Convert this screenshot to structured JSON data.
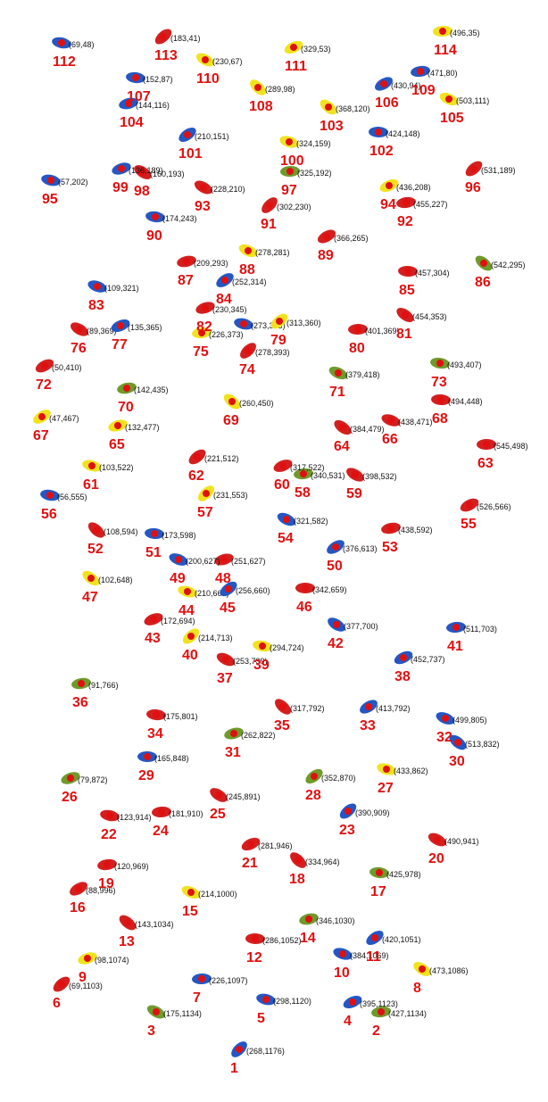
{
  "items": [
    {
      "id": "1",
      "coord": "(268,1176)",
      "color": "blue"
    },
    {
      "id": "2",
      "coord": "(427,1134)",
      "color": "green"
    },
    {
      "id": "3",
      "coord": "(175,1134)",
      "color": "green"
    },
    {
      "id": "4",
      "coord": "(395,1123)",
      "color": "blue"
    },
    {
      "id": "5",
      "coord": "(298,1120)",
      "color": "blue"
    },
    {
      "id": "6",
      "coord": "(69,1103)",
      "color": "red"
    },
    {
      "id": "7",
      "coord": "(226,1097)",
      "color": "blue"
    },
    {
      "id": "8",
      "coord": "(473,1086)",
      "color": "yellow"
    },
    {
      "id": "9",
      "coord": "(98,1074)",
      "color": "yellow"
    },
    {
      "id": "10",
      "coord": "(384,1069)",
      "color": "blue"
    },
    {
      "id": "11",
      "coord": "(420,1051)",
      "color": "blue"
    },
    {
      "id": "12",
      "coord": "(286,1052)",
      "color": "red"
    },
    {
      "id": "13",
      "coord": "(143,1034)",
      "color": "red"
    },
    {
      "id": "14",
      "coord": "(346,1030)",
      "color": "green"
    },
    {
      "id": "15",
      "coord": "(214,1000)",
      "color": "yellow"
    },
    {
      "id": "16",
      "coord": "(88,996)",
      "color": "red"
    },
    {
      "id": "17",
      "coord": "(425,978)",
      "color": "green"
    },
    {
      "id": "18",
      "coord": "(334,964)",
      "color": "red"
    },
    {
      "id": "19",
      "coord": "(120,969)",
      "color": "red"
    },
    {
      "id": "20",
      "coord": "(490,941)",
      "color": "red"
    },
    {
      "id": "21",
      "coord": "(281,946)",
      "color": "red"
    },
    {
      "id": "22",
      "coord": "(123,914)",
      "color": "red"
    },
    {
      "id": "23",
      "coord": "(390,909)",
      "color": "blue"
    },
    {
      "id": "24",
      "coord": "(181,910)",
      "color": "red"
    },
    {
      "id": "25",
      "coord": "(245,891)",
      "color": "red"
    },
    {
      "id": "26",
      "coord": "(79,872)",
      "color": "green"
    },
    {
      "id": "27",
      "coord": "(433,862)",
      "color": "yellow"
    },
    {
      "id": "28",
      "coord": "(352,870)",
      "color": "green"
    },
    {
      "id": "29",
      "coord": "(165,848)",
      "color": "blue"
    },
    {
      "id": "30",
      "coord": "(513,832)",
      "color": "blue"
    },
    {
      "id": "31",
      "coord": "(262,822)",
      "color": "green"
    },
    {
      "id": "32",
      "coord": "(499,805)",
      "color": "blue"
    },
    {
      "id": "33",
      "coord": "(413,792)",
      "color": "blue"
    },
    {
      "id": "34",
      "coord": "(175,801)",
      "color": "red"
    },
    {
      "id": "35",
      "coord": "(317,792)",
      "color": "red"
    },
    {
      "id": "36",
      "coord": "(91,766)",
      "color": "green"
    },
    {
      "id": "37",
      "coord": "(253,739)",
      "color": "red"
    },
    {
      "id": "38",
      "coord": "(452,737)",
      "color": "blue"
    },
    {
      "id": "39",
      "coord": "(294,724)",
      "color": "yellow"
    },
    {
      "id": "40",
      "coord": "(214,713)",
      "color": "yellow"
    },
    {
      "id": "41",
      "coord": "(511,703)",
      "color": "blue"
    },
    {
      "id": "42",
      "coord": "(377,700)",
      "color": "blue"
    },
    {
      "id": "43",
      "coord": "(172,694)",
      "color": "red"
    },
    {
      "id": "44",
      "coord": "(210,663)",
      "color": "yellow"
    },
    {
      "id": "45",
      "coord": "(256,660)",
      "color": "blue"
    },
    {
      "id": "46",
      "coord": "(342,659)",
      "color": "red"
    },
    {
      "id": "47",
      "coord": "(102,648)",
      "color": "yellow"
    },
    {
      "id": "48",
      "coord": "(251,627)",
      "color": "red"
    },
    {
      "id": "49",
      "coord": "(200,627)",
      "color": "blue"
    },
    {
      "id": "50",
      "coord": "(376,613)",
      "color": "blue"
    },
    {
      "id": "51",
      "coord": "(173,598)",
      "color": "blue"
    },
    {
      "id": "52",
      "coord": "(108,594)",
      "color": "red"
    },
    {
      "id": "53",
      "coord": "(438,592)",
      "color": "red"
    },
    {
      "id": "54",
      "coord": "(321,582)",
      "color": "blue"
    },
    {
      "id": "55",
      "coord": "(526,566)",
      "color": "red"
    },
    {
      "id": "56",
      "coord": "(56,555)",
      "color": "blue"
    },
    {
      "id": "57",
      "coord": "(231,553)",
      "color": "yellow"
    },
    {
      "id": "58",
      "coord": "(340,531)",
      "color": "green"
    },
    {
      "id": "59",
      "coord": "(398,532)",
      "color": "red"
    },
    {
      "id": "60",
      "coord": "(317,522)",
      "color": "red"
    },
    {
      "id": "61",
      "coord": "(103,522)",
      "color": "yellow"
    },
    {
      "id": "62",
      "coord": "(221,512)",
      "color": "red"
    },
    {
      "id": "63",
      "coord": "(545,498)",
      "color": "red"
    },
    {
      "id": "64",
      "coord": "(384,479)",
      "color": "red"
    },
    {
      "id": "65",
      "coord": "(132,477)",
      "color": "yellow"
    },
    {
      "id": "66",
      "coord": "(438,471)",
      "color": "red"
    },
    {
      "id": "67",
      "coord": "(47,467)",
      "color": "yellow"
    },
    {
      "id": "68",
      "coord": "(494,448)",
      "color": "red"
    },
    {
      "id": "69",
      "coord": "(260,450)",
      "color": "yellow"
    },
    {
      "id": "70",
      "coord": "(142,435)",
      "color": "green"
    },
    {
      "id": "71",
      "coord": "(379,418)",
      "color": "green"
    },
    {
      "id": "72",
      "coord": "(50,410)",
      "color": "red"
    },
    {
      "id": "73",
      "coord": "(493,407)",
      "color": "green"
    },
    {
      "id": "74",
      "coord": "(278,393)",
      "color": "red"
    },
    {
      "id": "75",
      "coord": "(226,373)",
      "color": "yellow"
    },
    {
      "id": "76",
      "coord": "(89,369)",
      "color": "red"
    },
    {
      "id": "77",
      "coord": "(135,365)",
      "color": "blue"
    },
    {
      "coord": "(273,363)",
      "color": "blue"
    },
    {
      "id": "79",
      "coord": "(313,360)",
      "color": "yellow"
    },
    {
      "id": "80",
      "coord": "(401,369)",
      "color": "red"
    },
    {
      "id": "81",
      "coord": "(454,353)",
      "color": "red"
    },
    {
      "id": "82",
      "coord": "(230,345)",
      "color": "red"
    },
    {
      "id": "83",
      "coord": "(109,321)",
      "color": "blue"
    },
    {
      "id": "84",
      "coord": "(252,314)",
      "color": "blue"
    },
    {
      "id": "85",
      "coord": "(457,304)",
      "color": "red"
    },
    {
      "id": "86",
      "coord": "(542,295)",
      "color": "green"
    },
    {
      "id": "87",
      "coord": "(209,293)",
      "color": "red"
    },
    {
      "id": "88",
      "coord": "(278,281)",
      "color": "yellow"
    },
    {
      "id": "89",
      "coord": "(366,265)",
      "color": "red"
    },
    {
      "id": "90",
      "coord": "(174,243)",
      "color": "blue"
    },
    {
      "id": "91",
      "coord": "(302,230)",
      "color": "red"
    },
    {
      "id": "92",
      "coord": "(455,227)",
      "color": "red"
    },
    {
      "id": "93",
      "coord": "(228,210)",
      "color": "red"
    },
    {
      "id": "94",
      "coord": "(436,208)",
      "color": "yellow"
    },
    {
      "id": "95",
      "coord": "(57,202)",
      "color": "blue"
    },
    {
      "id": "96",
      "coord": "(531,189)",
      "color": "red"
    },
    {
      "id": "97",
      "coord": "(325,192)",
      "color": "green"
    },
    {
      "id": "98",
      "coord": "(160,193)",
      "color": "red"
    },
    {
      "id": "99",
      "coord": "(136,189)",
      "color": "blue"
    },
    {
      "id": "100",
      "coord": "(324,159)",
      "color": "yellow"
    },
    {
      "id": "101",
      "coord": "(210,151)",
      "color": "blue"
    },
    {
      "id": "102",
      "coord": "(424,148)",
      "color": "blue"
    },
    {
      "id": "103",
      "coord": "(368,120)",
      "color": "yellow"
    },
    {
      "id": "104",
      "coord": "(144,116)",
      "color": "blue"
    },
    {
      "id": "105",
      "coord": "(503,111)",
      "color": "yellow"
    },
    {
      "id": "106",
      "coord": "(430,94)",
      "color": "blue"
    },
    {
      "id": "107",
      "coord": "(152,87)",
      "color": "blue"
    },
    {
      "id": "108",
      "coord": "(289,98)",
      "color": "yellow"
    },
    {
      "id": "109",
      "coord": "(471,80)",
      "color": "blue"
    },
    {
      "id": "110",
      "coord": "(230,67)",
      "color": "yellow"
    },
    {
      "id": "111",
      "coord": "(329,53)",
      "color": "yellow"
    },
    {
      "id": "112",
      "coord": "(69,48)",
      "color": "blue"
    },
    {
      "id": "113",
      "coord": "(183,41)",
      "color": "red"
    },
    {
      "id": "114",
      "coord": "(496,35)",
      "color": "yellow"
    }
  ]
}
